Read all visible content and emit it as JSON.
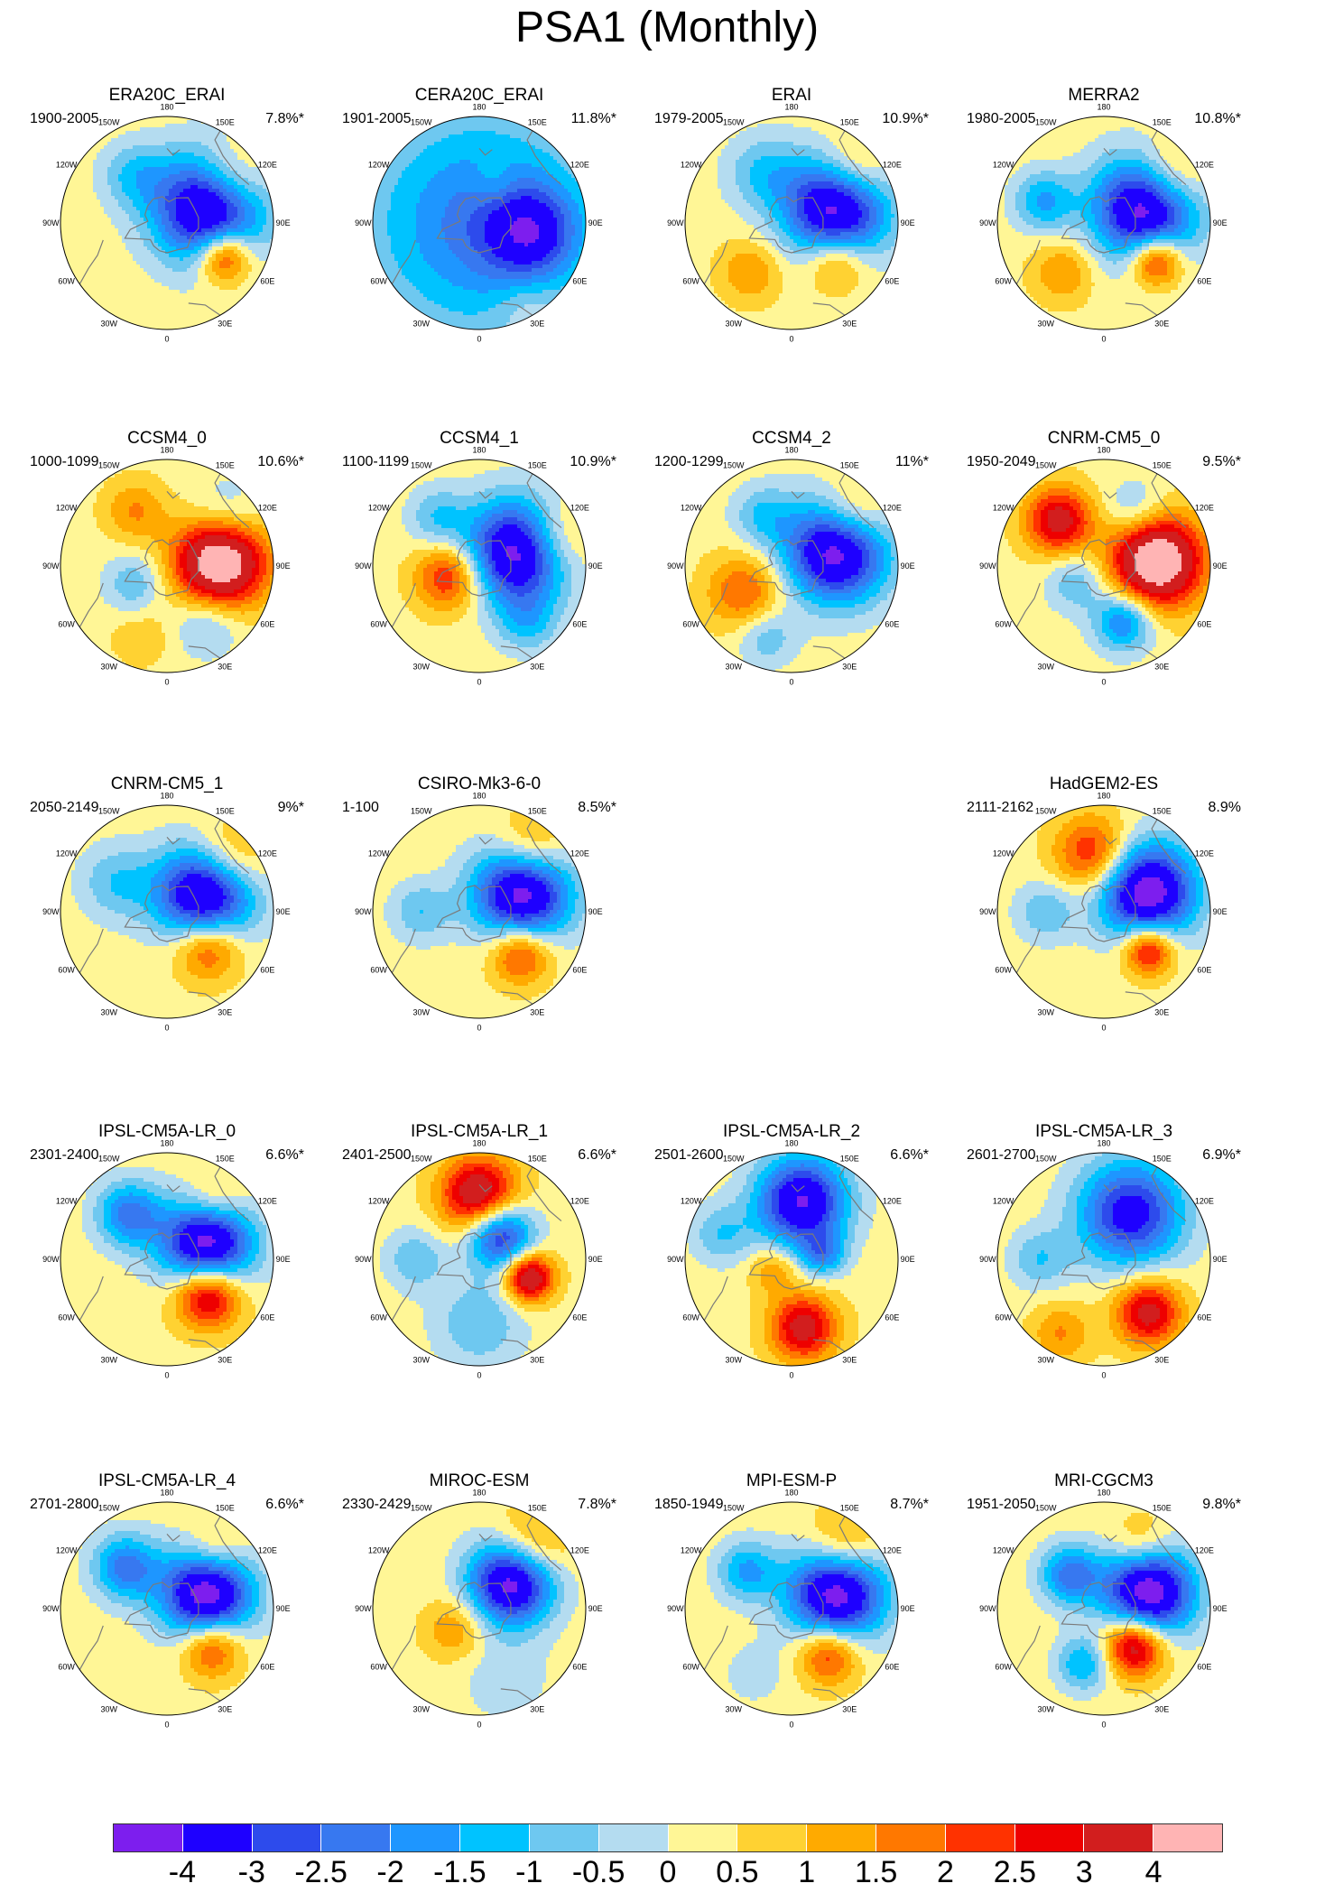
{
  "title": "PSA1 (Monthly)",
  "longitude_labels": [
    "0",
    "30E",
    "60E",
    "90E",
    "120E",
    "150E",
    "180",
    "150W",
    "120W",
    "90W",
    "60W",
    "30W"
  ],
  "panels": [
    {
      "name": "ERA20C_ERAI",
      "years": "1900-2005",
      "variance": "7.8%*",
      "row": 0,
      "col": 0,
      "blobs": [
        {
          "lon": 110,
          "r": 0.42,
          "v": -4,
          "s": 0.36
        },
        {
          "lon": 60,
          "r": 0.62,
          "v": 2.5,
          "s": 0.18
        },
        {
          "lon": 125,
          "r": 0.72,
          "v": 1.5,
          "s": 0.25
        },
        {
          "lon": 215,
          "r": 0.55,
          "v": -1,
          "s": 0.22
        }
      ]
    },
    {
      "name": "CERA20C_ERAI",
      "years": "1901-2005",
      "variance": "11.8%*",
      "row": 0,
      "col": 1,
      "blobs": [
        {
          "lon": 0,
          "r": 0,
          "v": -2,
          "s": 0.75
        },
        {
          "lon": 80,
          "r": 0.5,
          "v": -2,
          "s": 0.3
        },
        {
          "lon": 160,
          "r": 0.4,
          "v": 0.5,
          "s": 0.15
        },
        {
          "lon": 30,
          "r": 0.9,
          "v": 0.5,
          "s": 0.2
        }
      ]
    },
    {
      "name": "ERAI",
      "years": "1979-2005",
      "variance": "10.9%*",
      "row": 0,
      "col": 2,
      "blobs": [
        {
          "lon": 110,
          "r": 0.45,
          "v": -4,
          "s": 0.34
        },
        {
          "lon": 50,
          "r": 0.55,
          "v": 1.5,
          "s": 0.2
        },
        {
          "lon": 130,
          "r": 0.75,
          "v": 1.5,
          "s": 0.25
        },
        {
          "lon": 210,
          "r": 0.55,
          "v": -1,
          "s": 0.25
        },
        {
          "lon": 320,
          "r": 0.6,
          "v": 1,
          "s": 0.2
        }
      ]
    },
    {
      "name": "MERRA2",
      "years": "1980-2005",
      "variance": "10.8%*",
      "row": 0,
      "col": 3,
      "blobs": [
        {
          "lon": 110,
          "r": 0.42,
          "v": -4,
          "s": 0.34
        },
        {
          "lon": 55,
          "r": 0.6,
          "v": 2.5,
          "s": 0.17
        },
        {
          "lon": 125,
          "r": 0.75,
          "v": 1.5,
          "s": 0.25
        },
        {
          "lon": 250,
          "r": 0.6,
          "v": -1.5,
          "s": 0.2
        },
        {
          "lon": 320,
          "r": 0.6,
          "v": 1,
          "s": 0.2
        }
      ]
    },
    {
      "name": "CCSM4_0",
      "years": "1000-1099",
      "variance": "10.6%*",
      "row": 1,
      "col": 0,
      "blobs": [
        {
          "lon": 95,
          "r": 0.5,
          "v": 4,
          "s": 0.3
        },
        {
          "lon": 130,
          "r": 0.72,
          "v": -1,
          "s": 0.25
        },
        {
          "lon": 35,
          "r": 0.65,
          "v": -1,
          "s": 0.22
        },
        {
          "lon": 300,
          "r": 0.35,
          "v": -1,
          "s": 0.2
        },
        {
          "lon": 210,
          "r": 0.6,
          "v": 1,
          "s": 0.2
        },
        {
          "lon": 340,
          "r": 0.7,
          "v": 0.5,
          "s": 0.2
        }
      ]
    },
    {
      "name": "CCSM4_1",
      "years": "1100-1199",
      "variance": "10.9%*",
      "row": 1,
      "col": 1,
      "blobs": [
        {
          "lon": 110,
          "r": 0.4,
          "v": -4,
          "s": 0.34
        },
        {
          "lon": 290,
          "r": 0.3,
          "v": 2,
          "s": 0.22
        },
        {
          "lon": 110,
          "r": 0.75,
          "v": 1.5,
          "s": 0.25
        },
        {
          "lon": 40,
          "r": 0.7,
          "v": -1,
          "s": 0.2
        },
        {
          "lon": 220,
          "r": 0.6,
          "v": -1,
          "s": 0.2
        }
      ]
    },
    {
      "name": "CCSM4_2",
      "years": "1200-1299",
      "variance": "11%*",
      "row": 1,
      "col": 2,
      "blobs": [
        {
          "lon": 110,
          "r": 0.45,
          "v": -4,
          "s": 0.34
        },
        {
          "lon": 130,
          "r": 0.75,
          "v": 1.5,
          "s": 0.25
        },
        {
          "lon": 300,
          "r": 0.5,
          "v": 1.5,
          "s": 0.25
        },
        {
          "lon": 340,
          "r": 0.7,
          "v": -1,
          "s": 0.2
        },
        {
          "lon": 210,
          "r": 0.55,
          "v": -1,
          "s": 0.2
        }
      ]
    },
    {
      "name": "CNRM-CM5_0",
      "years": "1950-2049",
      "variance": "9.5%*",
      "row": 1,
      "col": 3,
      "blobs": [
        {
          "lon": 95,
          "r": 0.5,
          "v": 4,
          "s": 0.3
        },
        {
          "lon": 225,
          "r": 0.6,
          "v": 2.5,
          "s": 0.22
        },
        {
          "lon": 20,
          "r": 0.55,
          "v": -2,
          "s": 0.2
        },
        {
          "lon": 150,
          "r": 0.6,
          "v": -1,
          "s": 0.2
        },
        {
          "lon": 300,
          "r": 0.3,
          "v": -1,
          "s": 0.2
        }
      ]
    },
    {
      "name": "CNRM-CM5_1",
      "years": "2050-2149",
      "variance": "9%*",
      "row": 2,
      "col": 0,
      "blobs": [
        {
          "lon": 115,
          "r": 0.4,
          "v": -4,
          "s": 0.32
        },
        {
          "lon": 50,
          "r": 0.5,
          "v": 2,
          "s": 0.22
        },
        {
          "lon": 130,
          "r": 0.75,
          "v": 1.5,
          "s": 0.25
        },
        {
          "lon": 240,
          "r": 0.55,
          "v": -1,
          "s": 0.25
        }
      ]
    },
    {
      "name": "CSIRO-Mk3-6-0",
      "years": "1-100",
      "variance": "8.5%*",
      "row": 2,
      "col": 1,
      "blobs": [
        {
          "lon": 115,
          "r": 0.45,
          "v": -4,
          "s": 0.32
        },
        {
          "lon": 45,
          "r": 0.55,
          "v": 2,
          "s": 0.2
        },
        {
          "lon": 140,
          "r": 0.75,
          "v": 1.5,
          "s": 0.25
        },
        {
          "lon": 270,
          "r": 0.55,
          "v": -1,
          "s": 0.2
        }
      ]
    },
    {
      "name": "HadGEM2-ES",
      "years": "2111-2162",
      "variance": "8.9%",
      "row": 2,
      "col": 3,
      "blobs": [
        {
          "lon": 115,
          "r": 0.45,
          "v": -4,
          "s": 0.32
        },
        {
          "lon": 50,
          "r": 0.55,
          "v": 2.5,
          "s": 0.17
        },
        {
          "lon": 190,
          "r": 0.55,
          "v": 2,
          "s": 0.25
        },
        {
          "lon": 270,
          "r": 0.55,
          "v": -1,
          "s": 0.2
        }
      ]
    },
    {
      "name": "IPSL-CM5A-LR_0",
      "years": "2301-2400",
      "variance": "6.6%*",
      "row": 3,
      "col": 0,
      "blobs": [
        {
          "lon": 110,
          "r": 0.4,
          "v": -4,
          "s": 0.3
        },
        {
          "lon": 50,
          "r": 0.5,
          "v": 3,
          "s": 0.22
        },
        {
          "lon": 220,
          "r": 0.55,
          "v": -2,
          "s": 0.22
        },
        {
          "lon": 140,
          "r": 0.7,
          "v": 1,
          "s": 0.2
        }
      ]
    },
    {
      "name": "IPSL-CM5A-LR_1",
      "years": "2401-2500",
      "variance": "6.6%*",
      "row": 3,
      "col": 1,
      "blobs": [
        {
          "lon": 70,
          "r": 0.5,
          "v": 3,
          "s": 0.16
        },
        {
          "lon": 140,
          "r": 0.3,
          "v": -3,
          "s": 0.22
        },
        {
          "lon": 180,
          "r": 0.6,
          "v": 3,
          "s": 0.25
        },
        {
          "lon": 0,
          "r": 0.6,
          "v": -1,
          "s": 0.3
        },
        {
          "lon": 270,
          "r": 0.6,
          "v": -1,
          "s": 0.2
        }
      ]
    },
    {
      "name": "IPSL-CM5A-LR_2",
      "years": "2501-2600",
      "variance": "6.6%*",
      "row": 3,
      "col": 2,
      "blobs": [
        {
          "lon": 170,
          "r": 0.55,
          "v": -3.5,
          "s": 0.3
        },
        {
          "lon": 10,
          "r": 0.65,
          "v": 2.5,
          "s": 0.22
        },
        {
          "lon": 100,
          "r": 0.3,
          "v": -1.5,
          "s": 0.15
        },
        {
          "lon": 250,
          "r": 0.7,
          "v": -1,
          "s": 0.2
        },
        {
          "lon": 300,
          "r": 0.2,
          "v": 1,
          "s": 0.15
        }
      ]
    },
    {
      "name": "IPSL-CM5A-LR_3",
      "years": "2601-2700",
      "variance": "6.9%*",
      "row": 3,
      "col": 3,
      "blobs": [
        {
          "lon": 150,
          "r": 0.5,
          "v": -3,
          "s": 0.35
        },
        {
          "lon": 40,
          "r": 0.65,
          "v": 2.5,
          "s": 0.22
        },
        {
          "lon": 270,
          "r": 0.6,
          "v": -1,
          "s": 0.2
        },
        {
          "lon": 330,
          "r": 0.8,
          "v": 1,
          "s": 0.2
        }
      ]
    },
    {
      "name": "IPSL-CM5A-LR_4",
      "years": "2701-2800",
      "variance": "6.6%*",
      "row": 4,
      "col": 0,
      "blobs": [
        {
          "lon": 110,
          "r": 0.4,
          "v": -4,
          "s": 0.3
        },
        {
          "lon": 50,
          "r": 0.55,
          "v": 2,
          "s": 0.2
        },
        {
          "lon": 225,
          "r": 0.55,
          "v": -2,
          "s": 0.22
        },
        {
          "lon": 140,
          "r": 0.7,
          "v": 1,
          "s": 0.2
        }
      ]
    },
    {
      "name": "MIROC-ESM",
      "years": "2330-2429",
      "variance": "7.8%*",
      "row": 4,
      "col": 1,
      "blobs": [
        {
          "lon": 130,
          "r": 0.4,
          "v": -4,
          "s": 0.28
        },
        {
          "lon": 140,
          "r": 0.75,
          "v": 1.5,
          "s": 0.25
        },
        {
          "lon": 310,
          "r": 0.3,
          "v": 1,
          "s": 0.2
        },
        {
          "lon": 20,
          "r": 0.7,
          "v": -0.5,
          "s": 0.3
        }
      ]
    },
    {
      "name": "MPI-ESM-P",
      "years": "1850-1949",
      "variance": "8.7%*",
      "row": 4,
      "col": 2,
      "blobs": [
        {
          "lon": 110,
          "r": 0.45,
          "v": -4,
          "s": 0.32
        },
        {
          "lon": 40,
          "r": 0.55,
          "v": 2,
          "s": 0.2
        },
        {
          "lon": 140,
          "r": 0.75,
          "v": 1.5,
          "s": 0.25
        },
        {
          "lon": 230,
          "r": 0.55,
          "v": -1.5,
          "s": 0.2
        },
        {
          "lon": 330,
          "r": 0.7,
          "v": -0.5,
          "s": 0.2
        }
      ]
    },
    {
      "name": "MRI-CGCM3",
      "years": "1951-2050",
      "variance": "9.8%*",
      "row": 4,
      "col": 3,
      "blobs": [
        {
          "lon": 110,
          "r": 0.45,
          "v": -4,
          "s": 0.3
        },
        {
          "lon": 40,
          "r": 0.45,
          "v": 3,
          "s": 0.2
        },
        {
          "lon": 225,
          "r": 0.45,
          "v": -2,
          "s": 0.2
        },
        {
          "lon": 340,
          "r": 0.55,
          "v": -1.5,
          "s": 0.18
        },
        {
          "lon": 150,
          "r": 0.7,
          "v": 1,
          "s": 0.2
        }
      ]
    }
  ],
  "colorbar": {
    "colors": [
      "#7d1eee",
      "#1e00ff",
      "#2d4bec",
      "#3778f0",
      "#1e96ff",
      "#00c3ff",
      "#6ec8f0",
      "#b4dcf0",
      "#fff696",
      "#ffd232",
      "#ffaa00",
      "#ff7800",
      "#ff3200",
      "#ee0000",
      "#d21e1e",
      "#ffb4b4"
    ],
    "labels": [
      "-4",
      "-3",
      "-2.5",
      "-2",
      "-1.5",
      "-1",
      "-0.5",
      "0",
      "0.5",
      "1",
      "1.5",
      "2",
      "2.5",
      "3",
      "4"
    ]
  }
}
